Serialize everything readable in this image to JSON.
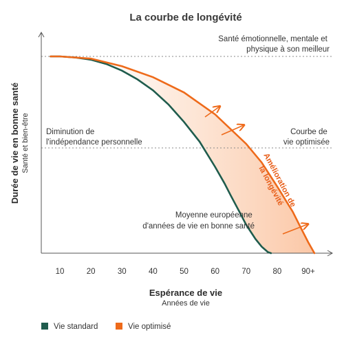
{
  "chart_data": {
    "type": "line",
    "title": "La courbe de longévité",
    "xlabel": "Espérance de vie",
    "xlabel_sub": "Années de vie",
    "ylabel": "Durée de vie en bonne santé",
    "ylabel_sub": "Santé et bien-être",
    "xlim": [
      5,
      97
    ],
    "x_ticks": [
      "10",
      "20",
      "30",
      "40",
      "50",
      "60",
      "70",
      "80",
      "90+"
    ],
    "x_tick_values": [
      10,
      20,
      30,
      40,
      50,
      60,
      70,
      80,
      90
    ],
    "y_scale": "qualitative",
    "ylim": [
      0,
      100
    ],
    "grid": false,
    "legend_position": "bottom-left",
    "reference_lines": [
      {
        "y": 90,
        "label_lines": [
          "Santé émotionnelle, mentale et",
          "physique à son meilleur"
        ]
      },
      {
        "y": 48,
        "label_lines": [
          "Diminution de",
          "l'indépendance personnelle"
        ]
      }
    ],
    "series": [
      {
        "name": "Vie standard",
        "color": "#1f5c4d",
        "x": [
          7,
          10,
          15,
          20,
          25,
          30,
          35,
          40,
          45,
          50,
          55,
          60,
          63,
          65,
          68,
          70,
          73,
          75,
          77,
          78
        ],
        "y": [
          90,
          90,
          89.5,
          88.5,
          86.5,
          83.5,
          79.5,
          74.5,
          68,
          60,
          51,
          39.5,
          32,
          26.5,
          18.5,
          13,
          6.5,
          3,
          0.5,
          0
        ]
      },
      {
        "name": "Vie optimisé",
        "color": "#ee6a1a",
        "x": [
          7,
          10,
          20,
          30,
          40,
          50,
          60,
          70,
          75,
          80,
          85,
          88,
          90,
          92
        ],
        "y": [
          90,
          90,
          89,
          85.5,
          80.5,
          73.5,
          63.5,
          50,
          41.5,
          30.5,
          19,
          10.5,
          5,
          0
        ]
      }
    ],
    "annotations": [
      {
        "lines": [
          "Courbe de",
          "vie optimisée"
        ]
      },
      {
        "lines": [
          "Moyenne européenne",
          "d'années de vie en bonne santé"
        ]
      },
      {
        "lines": [
          "Amélioration de",
          "la longévité"
        ]
      }
    ],
    "band_fill": "#fde3d1",
    "arrow_color": "#ee6a1a"
  }
}
